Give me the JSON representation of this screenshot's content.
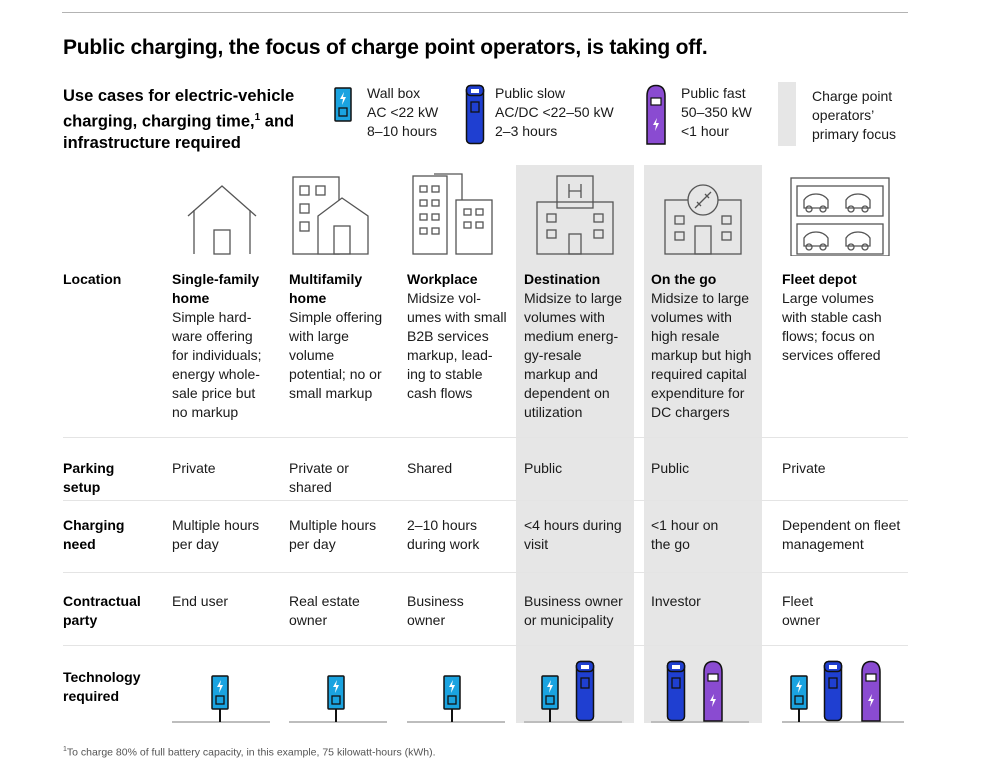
{
  "headline": "Public charging, the focus of charge point operators, is taking off.",
  "subtitle": {
    "text": "Use cases for electric-vehicle charging, charging time,",
    "footnote_mark": "1",
    "text2": "and infrastructure required"
  },
  "legend": {
    "wall_box": {
      "title": "Wall box",
      "line1": "AC <22 kW",
      "line2": "8–10 hours",
      "color": "#1aa3e0",
      "icon": "wall-box-charger-icon"
    },
    "public_slow": {
      "title": "Public slow",
      "line1": "AC/DC <22–50 kW",
      "line2": "2–3 hours",
      "color": "#1f3fd1",
      "icon": "public-slow-charger-icon"
    },
    "public_fast": {
      "title": "Public fast",
      "line1": "50–350 kW",
      "line2": "<1 hour",
      "color": "#8a4bd1",
      "icon": "public-fast-charger-icon"
    },
    "focus": {
      "line1": "Charge point",
      "line2": "operators’",
      "line3": "primary focus",
      "color": "#e6e6e6"
    }
  },
  "rows": {
    "location": "Location",
    "parking": "Parking setup",
    "charging": "Charging need",
    "contractual": "Contractual party",
    "technology": "Technology required"
  },
  "columns": [
    {
      "title": "Single-family home",
      "icon": "house-icon",
      "location": "Simple hard-ware offering for individuals; energy whole-sale price but no markup",
      "parking": "Private",
      "charging": "Multiple hours per day",
      "party": "End user",
      "tech": [
        "wall-box"
      ]
    },
    {
      "title": "Multifamily home",
      "icon": "apartment-building-icon",
      "location": "Simple offering with large volume potential; no or small markup",
      "parking": "Private or shared",
      "charging": "Multiple hours per day",
      "party": "Real estate owner",
      "tech": [
        "wall-box"
      ]
    },
    {
      "title": "Workplace",
      "icon": "office-buildings-icon",
      "location": "Midsize vol-umes with small B2B services markup, lead-ing to stable cash flows",
      "parking": "Shared",
      "charging": "2–10 hours during work",
      "party": "Business owner",
      "tech": [
        "wall-box"
      ]
    },
    {
      "title": "Destination",
      "icon": "hotel-icon",
      "location": "Midsize to large volumes with medium energ-gy-resale markup and dependent on utilization",
      "parking": "Public",
      "charging": "<4 hours during visit",
      "party": "Business owner or municipality",
      "tech": [
        "wall-box",
        "public-slow"
      ]
    },
    {
      "title": "On the go",
      "icon": "service-station-icon",
      "location": "Midsize to large volumes with high resale markup but high required capital expenditure for DC chargers",
      "parking": "Public",
      "charging": "<1 hour on the go",
      "party": "Investor",
      "tech": [
        "public-slow",
        "public-fast"
      ]
    },
    {
      "title": "Fleet depot",
      "icon": "fleet-garage-icon",
      "location": "Large volumes with stable cash flows; focus on services offered",
      "parking": "Private",
      "charging": "Dependent on fleet management",
      "party": "Fleet owner",
      "tech": [
        "wall-box",
        "public-slow",
        "public-fast"
      ]
    }
  ],
  "footnote": {
    "mark": "1",
    "text": "To charge 80% of full battery capacity, in this example, 75 kilowatt-hours (kWh)."
  }
}
